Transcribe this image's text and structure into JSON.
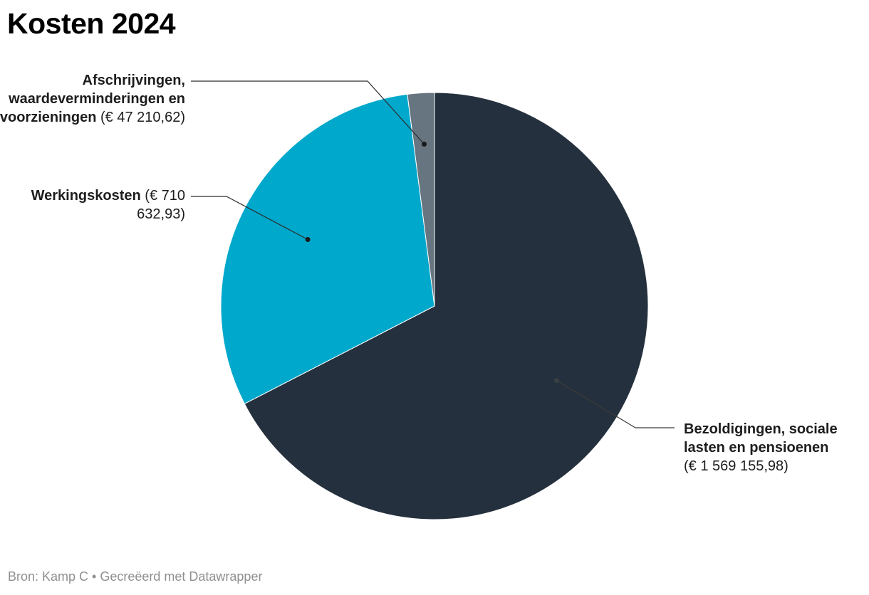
{
  "title": "Kosten 2024",
  "footer": "Bron: Kamp C • Gecreëerd met Datawrapper",
  "chart_data": {
    "type": "pie",
    "title": "Kosten 2024",
    "slices": [
      {
        "label": "Bezoldigingen, sociale lasten en pensioenen",
        "value": 1569155.98,
        "value_label": "(€ 1 569 155,98)",
        "color": "#24303d"
      },
      {
        "label": "Werkingskosten",
        "value": 710632.93,
        "value_label": "(€ 710 632,93)",
        "color": "#00a8cc"
      },
      {
        "label": "Afschrijvingen, waardeverminderingen en voorzieningen",
        "value": 47210.62,
        "value_label": "(€ 47 210,62)",
        "color": "#677581"
      }
    ],
    "start_angle": "12 o'clock",
    "direction": "clockwise",
    "legend": "none (direct labels)"
  }
}
